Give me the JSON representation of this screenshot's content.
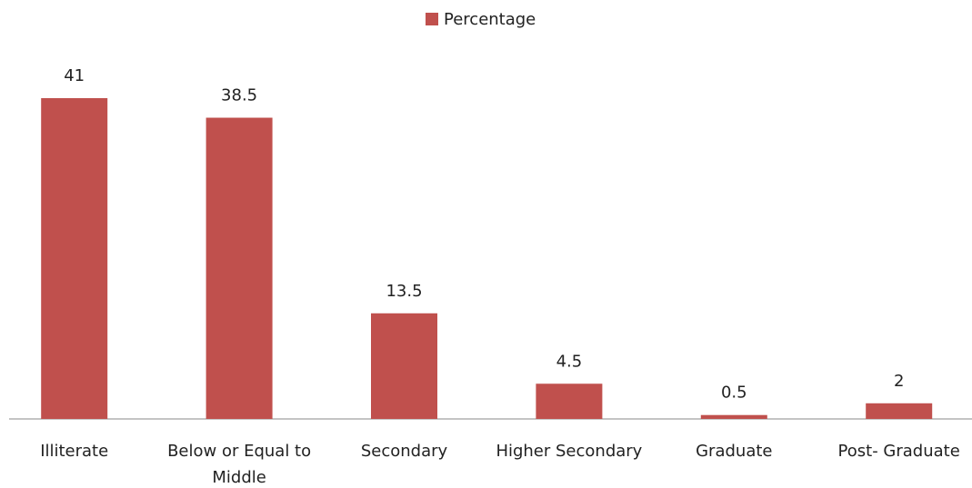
{
  "chart_data": {
    "type": "bar",
    "categories": [
      "Illiterate",
      "Below or Equal to Middle",
      "Secondary",
      "Higher Secondary",
      "Graduate",
      "Post- Graduate"
    ],
    "series": [
      {
        "name": "Percentage",
        "color": "#c0504d",
        "values": [
          41,
          38.5,
          13.5,
          4.5,
          0.5,
          2
        ]
      }
    ],
    "legend": "top"
  }
}
